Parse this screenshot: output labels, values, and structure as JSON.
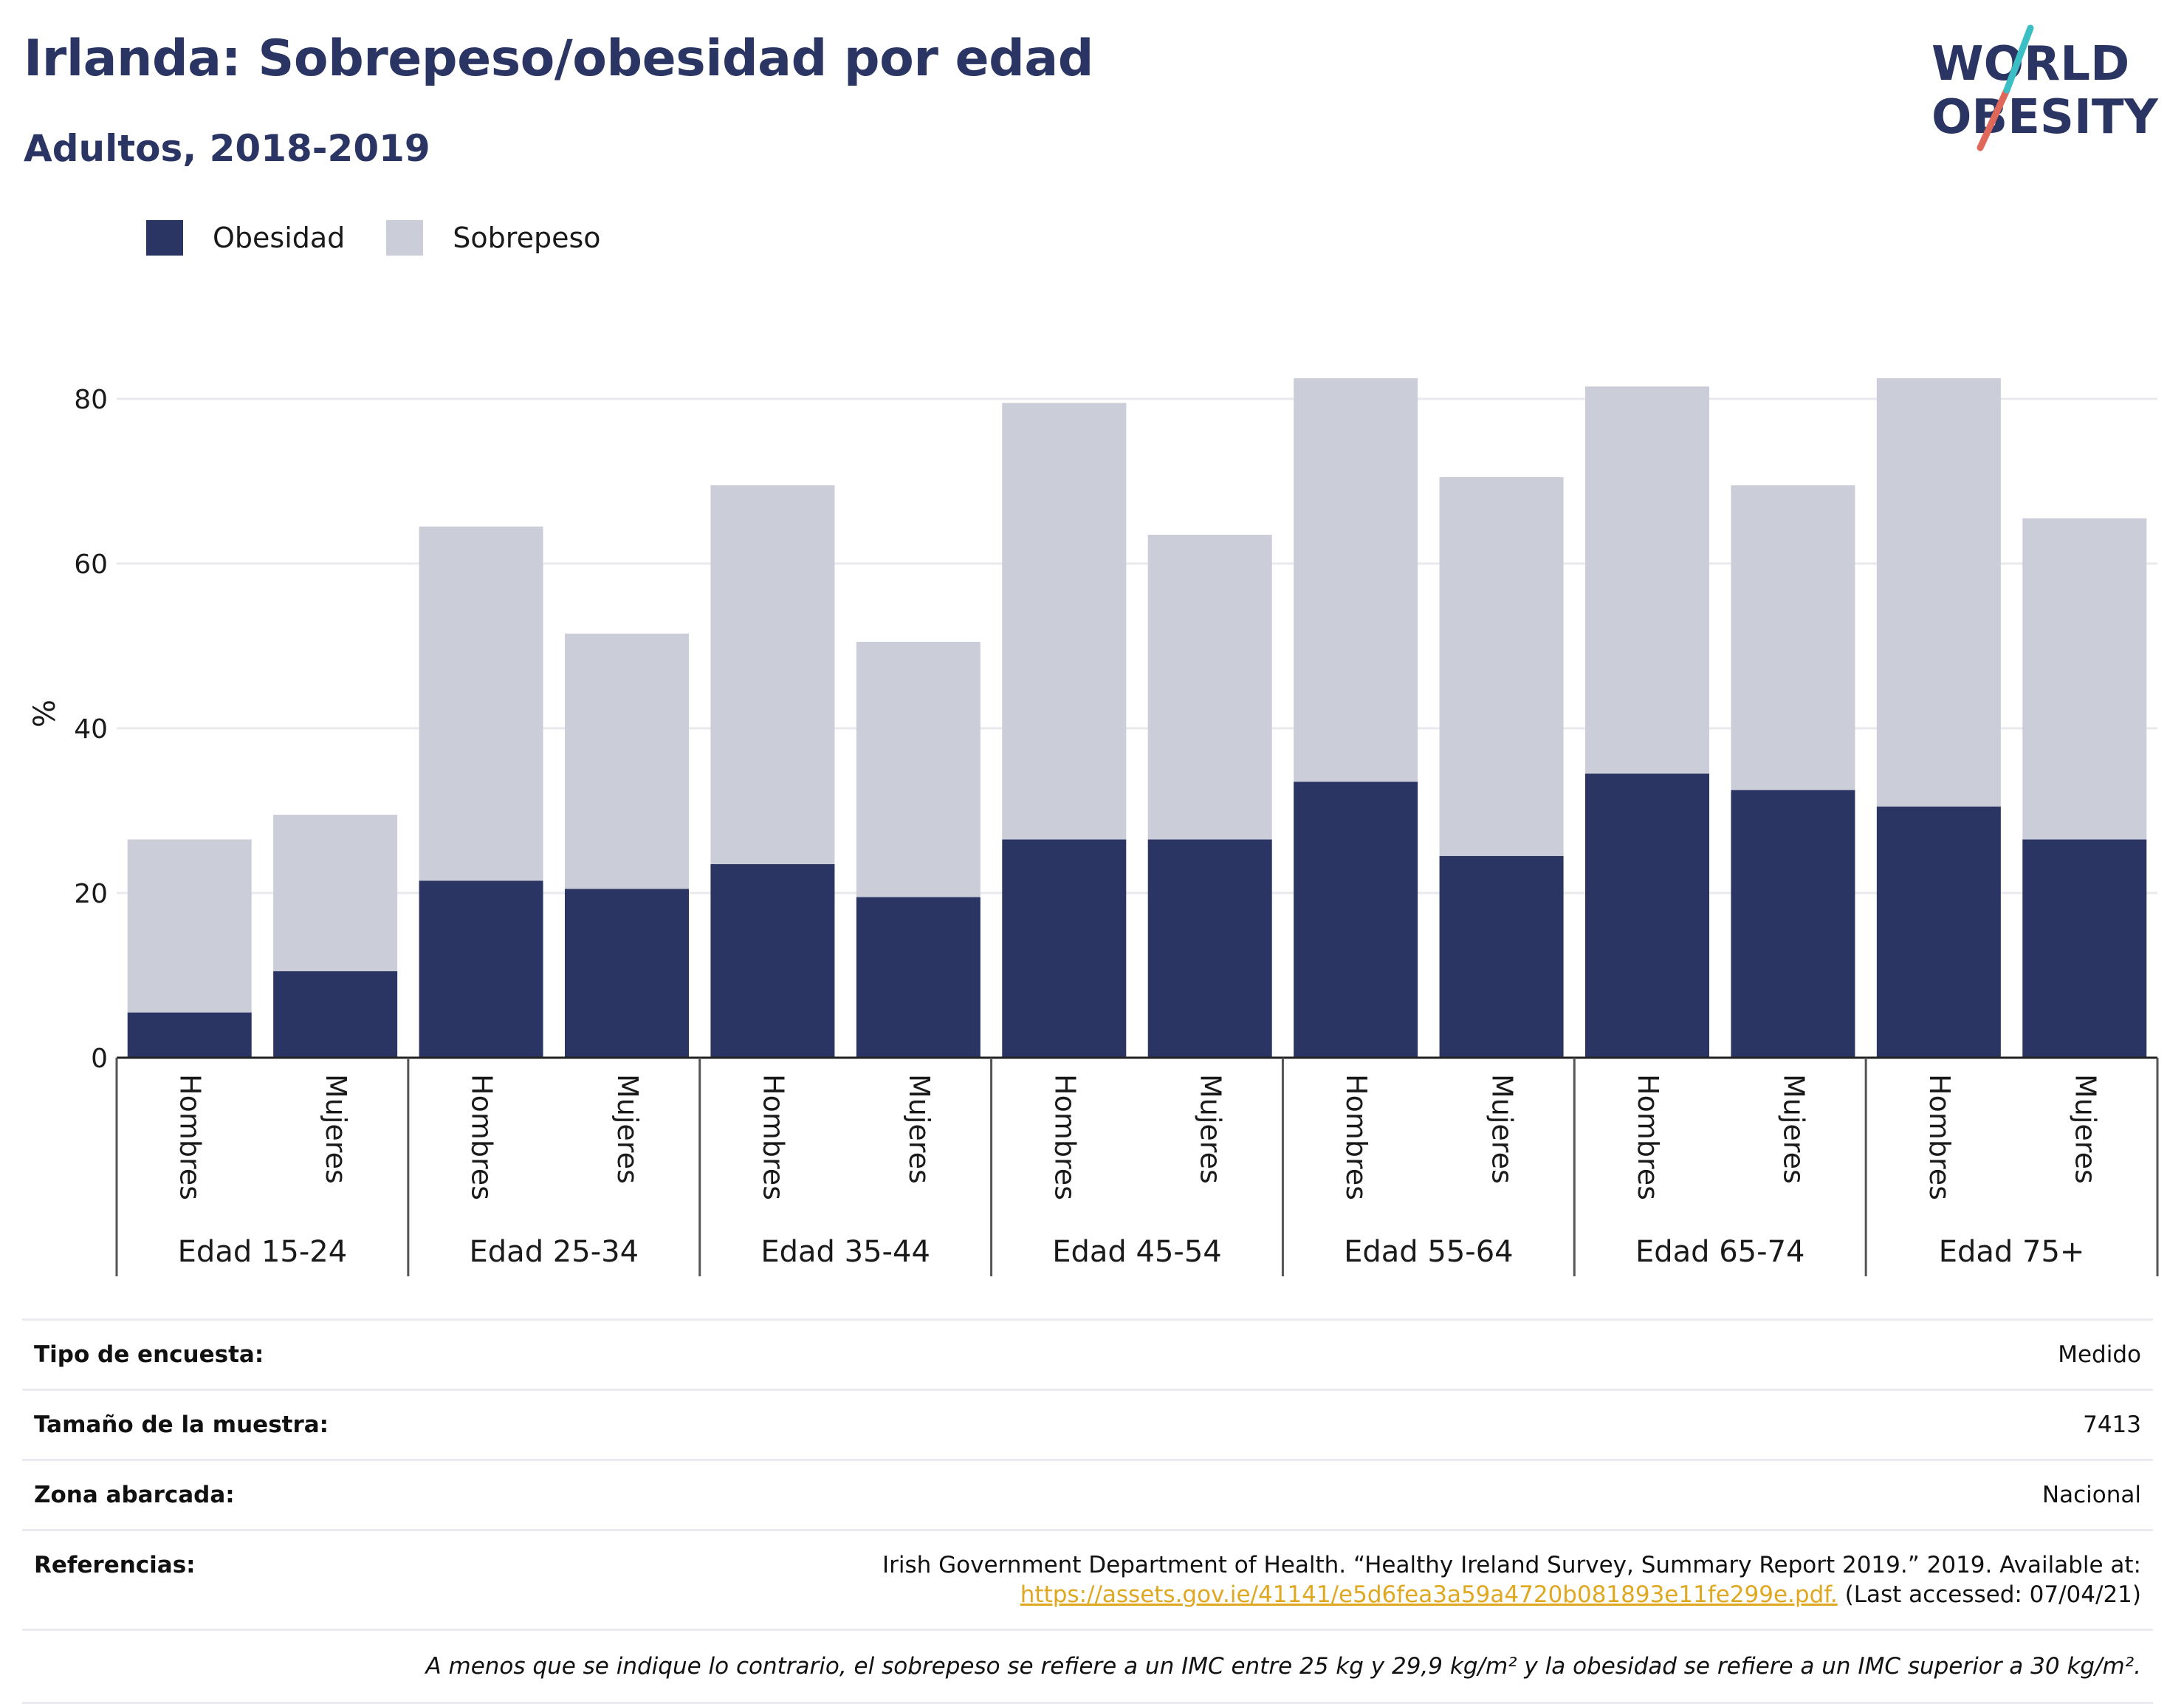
{
  "title": "Irlanda: Sobrepeso/obesidad por edad",
  "subtitle": "Adultos, 2018-2019",
  "logo": {
    "line1": "WORLD",
    "line2": "OBESITY"
  },
  "colors": {
    "obesity": "#2a3563",
    "overweight": "#cbcdd9",
    "accent_teal": "#3bbfc4",
    "accent_red": "#e0685a",
    "link": "#e0a820"
  },
  "legend": [
    {
      "label": "Obesidad",
      "color": "#2a3563"
    },
    {
      "label": "Sobrepeso",
      "color": "#cbcdd9"
    }
  ],
  "chart_data": {
    "type": "bar",
    "stacked": true,
    "ylabel": "%",
    "xlabel": "",
    "ylim": [
      0,
      90
    ],
    "yticks": [
      0,
      20,
      40,
      60,
      80
    ],
    "grid": true,
    "legend_position": "top-left",
    "groups": [
      "Edad 15-24",
      "Edad 25-34",
      "Edad 35-44",
      "Edad 45-54",
      "Edad 55-64",
      "Edad 65-74",
      "Edad 75+"
    ],
    "categories": [
      "Hombres",
      "Mujeres",
      "Hombres",
      "Mujeres",
      "Hombres",
      "Mujeres",
      "Hombres",
      "Mujeres",
      "Hombres",
      "Mujeres",
      "Hombres",
      "Mujeres",
      "Hombres",
      "Mujeres"
    ],
    "series": [
      {
        "name": "Obesidad",
        "values": [
          5.5,
          10.5,
          21.5,
          20.5,
          23.5,
          19.5,
          26.5,
          26.5,
          33.5,
          24.5,
          34.5,
          32.5,
          30.5,
          26.5
        ]
      },
      {
        "name": "Sobrepeso",
        "values": [
          21,
          19,
          43,
          31,
          46,
          31,
          53,
          37,
          49,
          46,
          47,
          37,
          52,
          39
        ]
      }
    ]
  },
  "info": {
    "survey_type_label": "Tipo de encuesta:",
    "survey_type_value": "Medido",
    "sample_size_label": "Tamaño de la muestra:",
    "sample_size_value": "7413",
    "area_label": "Zona abarcada:",
    "area_value": "Nacional",
    "references_label": "Referencias:",
    "references_text1": "Irish Government Department of Health. “Healthy Ireland Survey, Summary Report 2019.” 2019. Available at:",
    "references_link": "https://assets.gov.ie/41141/e5d6fea3a59a4720b081893e11fe299e.pdf.",
    "references_text2": " (Last accessed: 07/04/21)",
    "footnote": "A menos que se indique lo contrario, el sobrepeso se refiere a un IMC entre 25 kg y 29,9 kg/m² y la obesidad se refiere a un IMC superior a 30 kg/m²."
  }
}
